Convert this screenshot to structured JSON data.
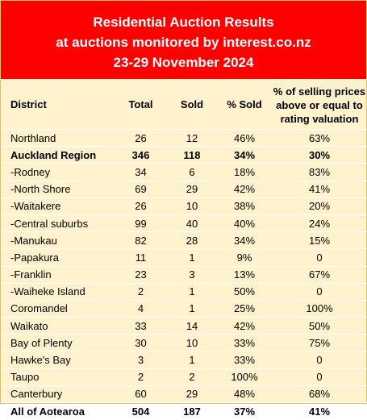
{
  "header": {
    "line1": "Residential Auction Results",
    "line2": "at auctions monitored by interest.co.nz",
    "line3": "23-29 November 2024"
  },
  "colors": {
    "banner": "#ff0000",
    "table_bg": "#fff2cc"
  },
  "table": {
    "columns": [
      "District",
      "Total",
      "Sold",
      "% Sold",
      "% of selling prices above or equal to rating valuation"
    ],
    "rows": [
      {
        "district": "Northland",
        "total": "26",
        "sold": "12",
        "pct_sold": "46%",
        "pct_above": "63%",
        "bold": false
      },
      {
        "district": "Auckland Region",
        "total": "346",
        "sold": "118",
        "pct_sold": "34%",
        "pct_above": "30%",
        "bold": true
      },
      {
        "district": "-Rodney",
        "total": "34",
        "sold": "6",
        "pct_sold": "18%",
        "pct_above": "83%",
        "bold": false
      },
      {
        "district": "-North Shore",
        "total": "69",
        "sold": "29",
        "pct_sold": "42%",
        "pct_above": "41%",
        "bold": false
      },
      {
        "district": "-Waitakere",
        "total": "26",
        "sold": "10",
        "pct_sold": "38%",
        "pct_above": "20%",
        "bold": false
      },
      {
        "district": "-Central suburbs",
        "total": "99",
        "sold": "40",
        "pct_sold": "40%",
        "pct_above": "24%",
        "bold": false
      },
      {
        "district": "-Manukau",
        "total": "82",
        "sold": "28",
        "pct_sold": "34%",
        "pct_above": "15%",
        "bold": false
      },
      {
        "district": "-Papakura",
        "total": "11",
        "sold": "1",
        "pct_sold": "9%",
        "pct_above": "0",
        "bold": false
      },
      {
        "district": "-Franklin",
        "total": "23",
        "sold": "3",
        "pct_sold": "13%",
        "pct_above": "67%",
        "bold": false
      },
      {
        "district": "-Waiheke Island",
        "total": "2",
        "sold": "1",
        "pct_sold": "50%",
        "pct_above": "0",
        "bold": false
      },
      {
        "district": "Coromandel",
        "total": "4",
        "sold": "1",
        "pct_sold": "25%",
        "pct_above": "100%",
        "bold": false
      },
      {
        "district": "Waikato",
        "total": "33",
        "sold": "14",
        "pct_sold": "42%",
        "pct_above": "50%",
        "bold": false
      },
      {
        "district": "Bay of Plenty",
        "total": "30",
        "sold": "10",
        "pct_sold": "33%",
        "pct_above": "75%",
        "bold": false
      },
      {
        "district": "Hawke's Bay",
        "total": "3",
        "sold": "1",
        "pct_sold": "33%",
        "pct_above": "0",
        "bold": false
      },
      {
        "district": "Taupo",
        "total": "2",
        "sold": "2",
        "pct_sold": "100%",
        "pct_above": "0",
        "bold": false
      },
      {
        "district": "Canterbury",
        "total": "60",
        "sold": "29",
        "pct_sold": "48%",
        "pct_above": "68%",
        "bold": false
      },
      {
        "district": "All of Aotearoa",
        "total": "504",
        "sold": "187",
        "pct_sold": "37%",
        "pct_above": "41%",
        "bold": true
      }
    ]
  }
}
